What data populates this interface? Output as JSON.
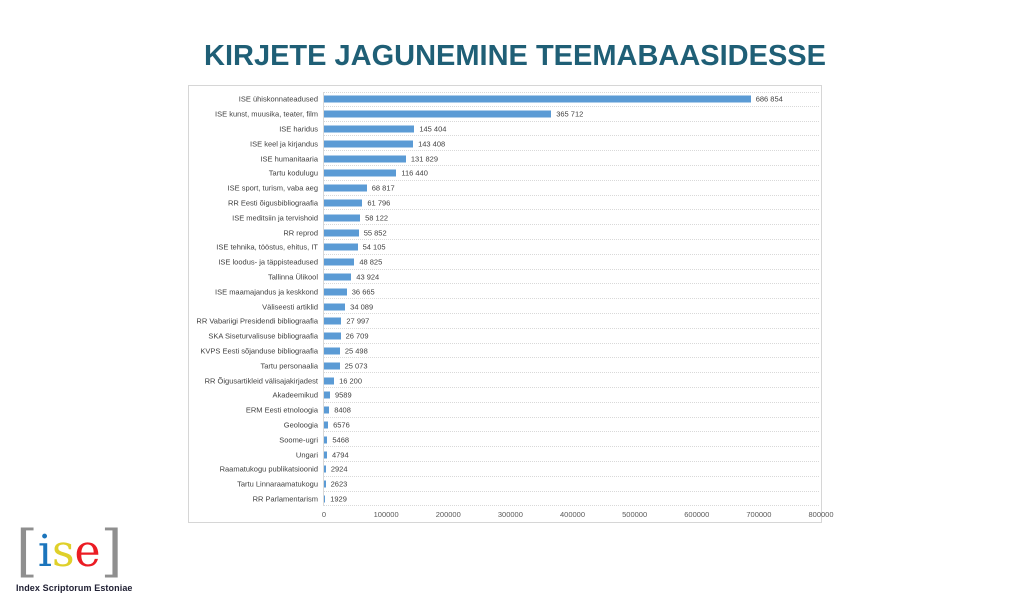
{
  "title": {
    "text": "KIRJETE JAGUNEMINE TEEMABAASIDESSE",
    "color": "#1F5F76"
  },
  "chart_data": {
    "type": "bar",
    "orientation": "horizontal",
    "title": "KIRJETE JAGUNEMINE TEEMABAASIDESSE",
    "xlabel": "",
    "ylabel": "",
    "xlim": [
      0,
      800000
    ],
    "x_ticks": [
      0,
      100000,
      200000,
      300000,
      400000,
      500000,
      600000,
      700000,
      800000
    ],
    "x_tick_labels": [
      "0",
      "100000",
      "200000",
      "300000",
      "400000",
      "500000",
      "600000",
      "700000",
      "800000"
    ],
    "grid": "horizontal-dotted",
    "legend": false,
    "bar_color": "#5B9BD5",
    "categories": [
      "ISE ühiskonnateadused",
      "ISE kunst, muusika, teater, film",
      "ISE haridus",
      "ISE keel ja kirjandus",
      "ISE humanitaaria",
      "Tartu kodulugu",
      "ISE sport, turism, vaba aeg",
      "RR Eesti õigusbibliograafia",
      "ISE meditsiin ja tervishoid",
      "RR reprod",
      "ISE tehnika, tööstus, ehitus, IT",
      "ISE loodus- ja täppisteadused",
      "Tallinna Ülikool",
      "ISE maamajandus ja keskkond",
      "Väliseesti artiklid",
      "RR Vabariigi Presidendi bibliograafia",
      "SKA Siseturvalisuse bibliograafia",
      "KVPS Eesti sõjanduse bibliograafia",
      "Tartu personaalia",
      "RR Õigusartikleid välisajakirjadest",
      "Akadeemikud",
      "ERM Eesti etnoloogia",
      "Geoloogia",
      "Soome-ugri",
      "Ungari",
      "Raamatukogu publikatsioonid",
      "Tartu Linnaraamatukogu",
      "RR Parlamentarism"
    ],
    "values": [
      686854,
      365712,
      145404,
      143408,
      131829,
      116440,
      68817,
      61796,
      58122,
      55852,
      54105,
      48825,
      43924,
      36665,
      34089,
      27997,
      26709,
      25498,
      25073,
      16200,
      9589,
      8408,
      6576,
      5468,
      4794,
      2924,
      2623,
      1929
    ],
    "value_labels": [
      "686 854",
      "365 712",
      "145 404",
      "143 408",
      "131 829",
      "116 440",
      "68 817",
      "61 796",
      "58 122",
      "55 852",
      "54 105",
      "48 825",
      "43 924",
      "36 665",
      "34 089",
      "27 997",
      "26 709",
      "25 498",
      "25 073",
      "16 200",
      "9589",
      "8408",
      "6576",
      "5468",
      "4794",
      "2924",
      "2623",
      "1929"
    ]
  },
  "logo": {
    "bracket_left": "[",
    "bracket_right": "]",
    "bracket_color": "#8F8F8F",
    "letters": [
      {
        "char": "i",
        "color": "#1B75BC"
      },
      {
        "char": "s",
        "color": "#DFD02A"
      },
      {
        "char": "e",
        "color": "#EB1C24"
      }
    ],
    "caption": "Index Scriptorum Estoniae",
    "caption_color": "#222235"
  }
}
